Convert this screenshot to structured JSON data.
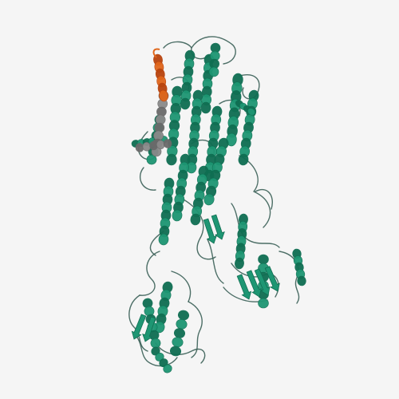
{
  "image": {
    "subject": "protein-cartoon-structure",
    "background_color": "#f5f5f5",
    "colors": {
      "main_chain": "#1e9673",
      "main_chain_dark": "#0f6e52",
      "coil": "#3a5f56",
      "highlight_helix": "#e0661b",
      "highlight_dark": "#b8440e",
      "grey_segment": "#8a8a8a"
    }
  }
}
